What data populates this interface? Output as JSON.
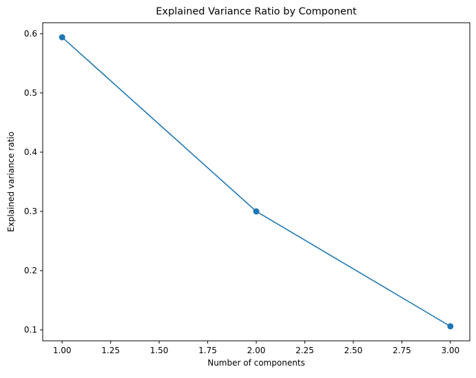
{
  "chart_data": {
    "type": "line",
    "title": "Explained Variance Ratio by Component",
    "xlabel": "Number of components",
    "ylabel": "Explained variance ratio",
    "x": [
      1,
      2,
      3
    ],
    "series": [
      {
        "values": [
          0.594,
          0.3,
          0.106
        ],
        "color": "#1f77b4",
        "marker": "circle"
      }
    ],
    "xlim": [
      0.9,
      3.1
    ],
    "ylim": [
      0.0815,
      0.6185
    ],
    "xticks": [
      1.0,
      1.25,
      1.5,
      1.75,
      2.0,
      2.25,
      2.5,
      2.75,
      3.0
    ],
    "xtick_labels": [
      "1.00",
      "1.25",
      "1.50",
      "1.75",
      "2.00",
      "2.25",
      "2.50",
      "2.75",
      "3.00"
    ],
    "yticks": [
      0.1,
      0.2,
      0.3,
      0.4,
      0.5,
      0.6
    ],
    "ytick_labels": [
      "0.1",
      "0.2",
      "0.3",
      "0.4",
      "0.5",
      "0.6"
    ],
    "grid": false,
    "legend": "none"
  }
}
